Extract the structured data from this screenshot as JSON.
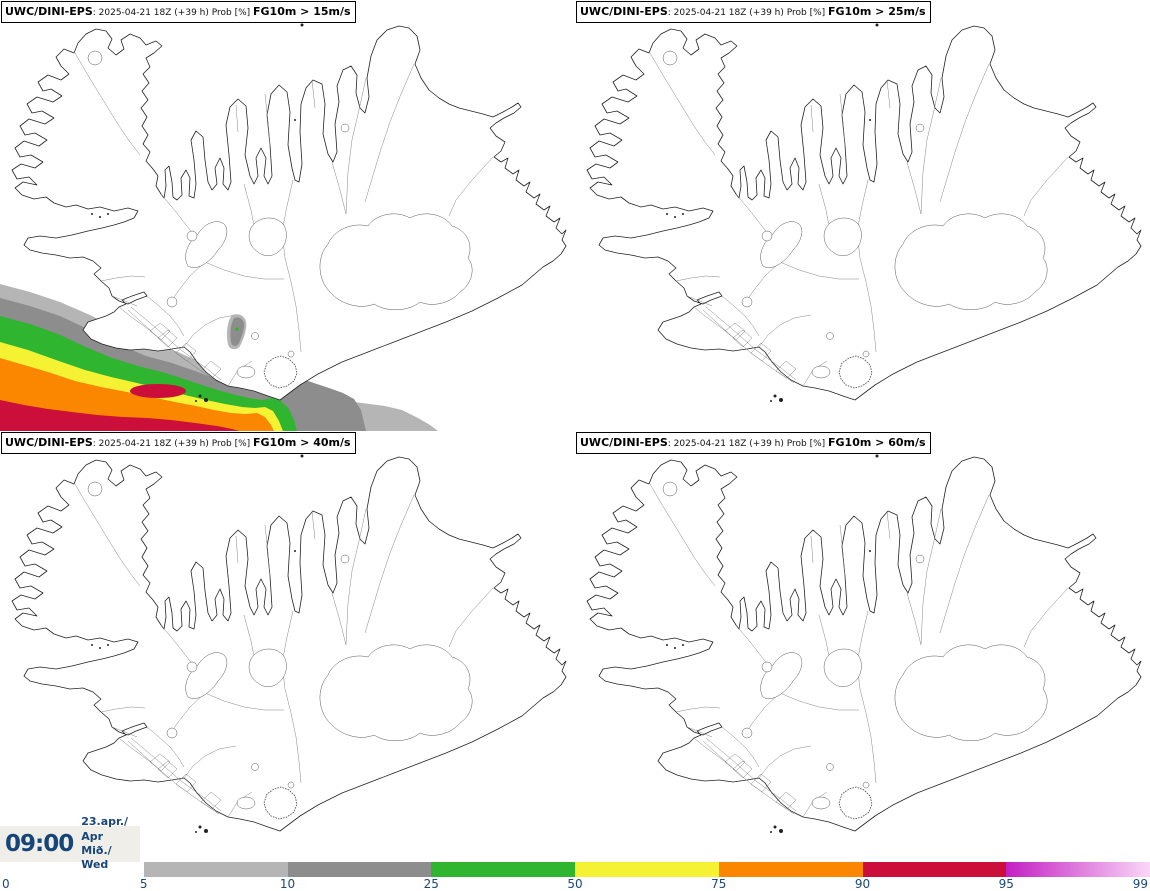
{
  "panels": [
    {
      "model": "UWC/DINI-EPS",
      "run_info": ": 2025-04-21 18Z (+39 h) Prob [%] ",
      "threshold": "FG10m > 15m/s"
    },
    {
      "model": "UWC/DINI-EPS",
      "run_info": ": 2025-04-21 18Z (+39 h) Prob [%] ",
      "threshold": "FG10m > 25m/s"
    },
    {
      "model": "UWC/DINI-EPS",
      "run_info": ": 2025-04-21 18Z (+39 h) Prob [%] ",
      "threshold": "FG10m > 40m/s"
    },
    {
      "model": "UWC/DINI-EPS",
      "run_info": ": 2025-04-21 18Z (+39 h) Prob [%] ",
      "threshold": "FG10m > 60m/s"
    }
  ],
  "valid": {
    "time": "09:00",
    "date": "23.apr./ Apr",
    "weekday": "Mið./ Wed"
  },
  "colorbar": {
    "tick_labels": [
      "0",
      "5",
      "10",
      "25",
      "50",
      "75",
      "90",
      "95",
      "99"
    ],
    "segments": [
      {
        "range": "0–5",
        "from": "transparent"
      },
      {
        "range": "5–10",
        "from": "#b5b5b5"
      },
      {
        "range": "10–25",
        "from": "#8d8d8d"
      },
      {
        "range": "25–50",
        "from": "#2fb52f"
      },
      {
        "range": "50–75",
        "from": "#f5f233"
      },
      {
        "range": "75–90",
        "from": "#fb8600"
      },
      {
        "range": "90–95",
        "from": "#cb0e3a"
      },
      {
        "range": "95–99",
        "from": "#c31fc3",
        "to": "#fbd7f8"
      }
    ]
  },
  "overlay": {
    "gray_light": "#b5b5b5",
    "gray_dark": "#8d8d8d",
    "green": "#2fb52f",
    "yellow": "#f5f233",
    "orange": "#fb8600",
    "red": "#cb0e3a"
  },
  "text_colors": {
    "navy": "#164579"
  }
}
